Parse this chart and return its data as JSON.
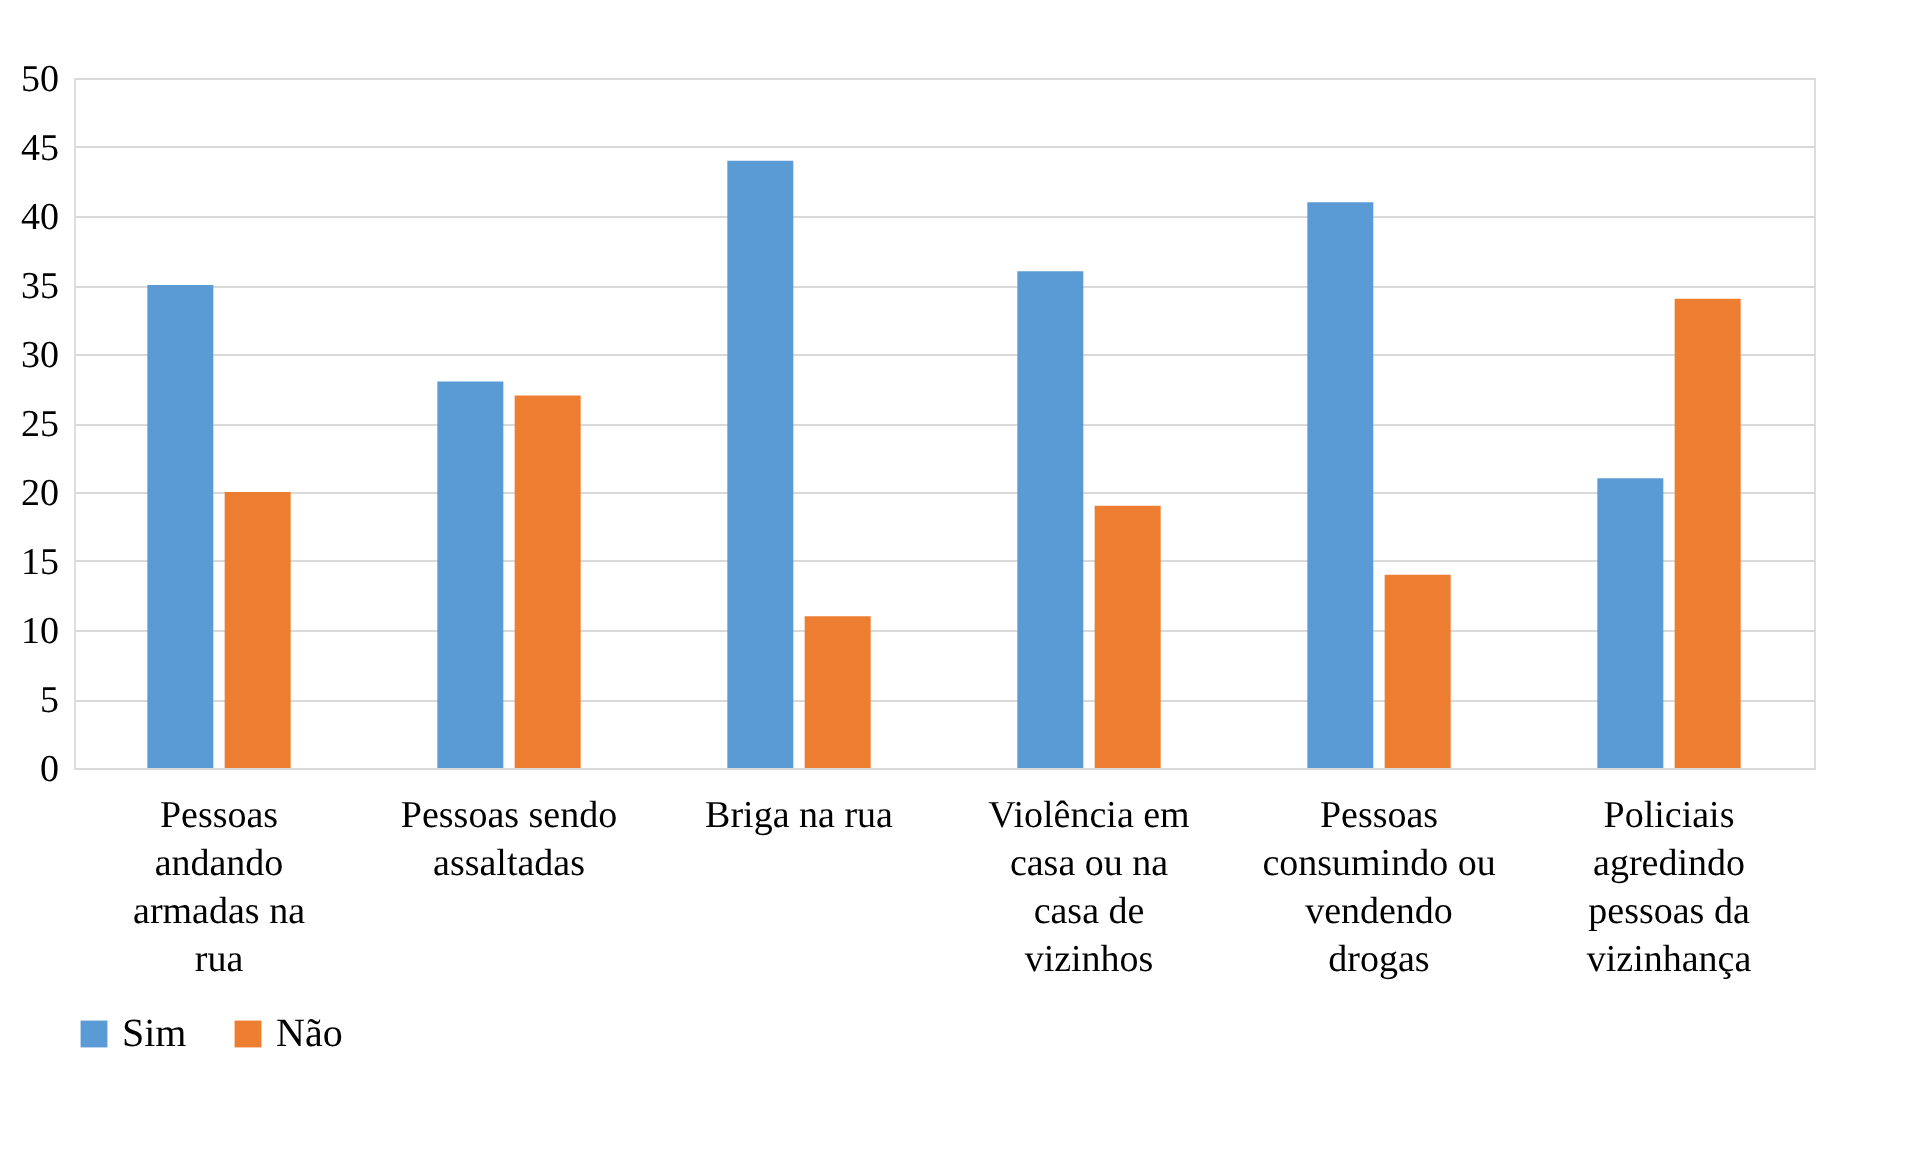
{
  "chart_data": {
    "type": "bar",
    "categories": [
      "Pessoas andando armadas na rua",
      "Pessoas sendo assaltadas",
      "Briga na rua",
      "Violência em casa ou na casa de vizinhos",
      "Pessoas consumindo ou vendendo drogas",
      "Policiais agredindo pessoas da vizinhança"
    ],
    "series": [
      {
        "name": "Sim",
        "color": "#5b9bd5",
        "values": [
          35,
          28,
          44,
          36,
          41,
          21
        ]
      },
      {
        "name": "Não",
        "color": "#ed7d31",
        "values": [
          20,
          27,
          11,
          19,
          14,
          34
        ]
      }
    ],
    "ylim": [
      0,
      50
    ],
    "yticks": [
      0,
      5,
      10,
      15,
      20,
      25,
      30,
      35,
      40,
      45,
      50
    ],
    "grid": "y",
    "legend": "bottom"
  }
}
